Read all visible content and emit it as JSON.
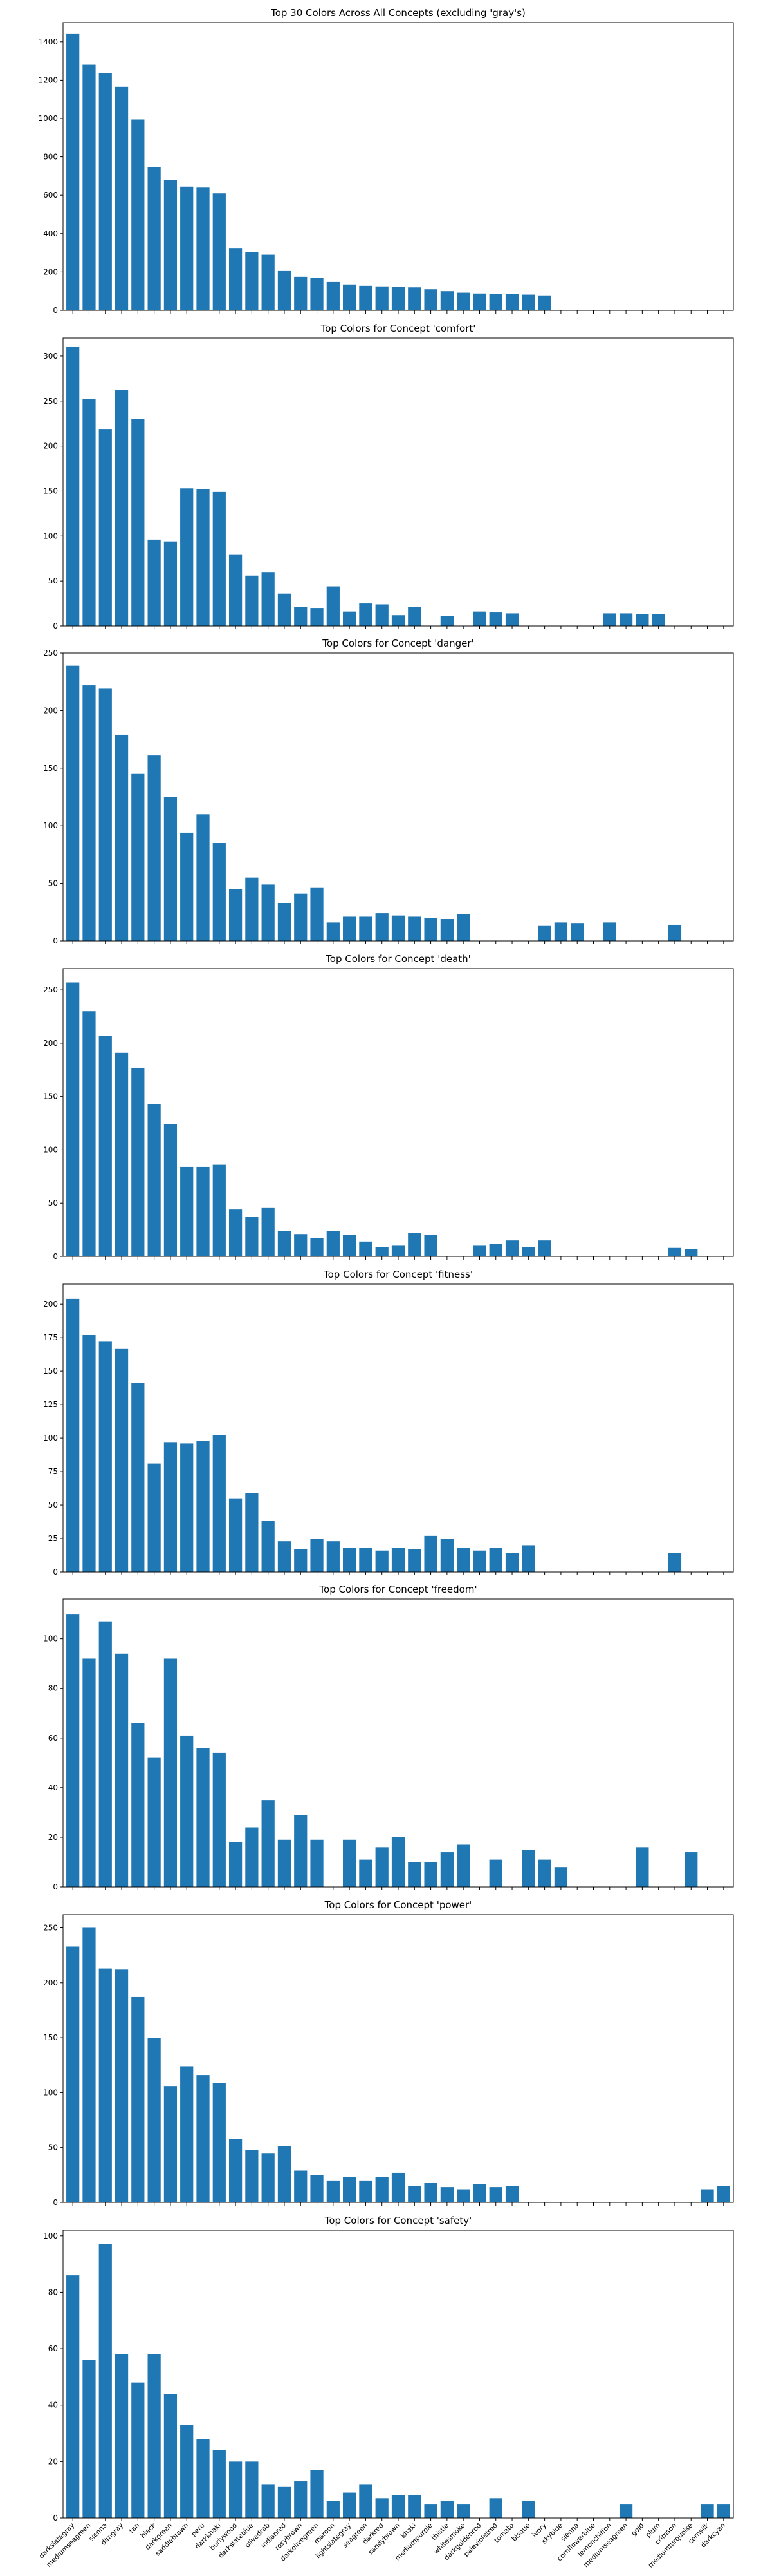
{
  "chart_data": {
    "type": "bar",
    "bar_color": "#1f77b4",
    "axes_edge_color": "#000000",
    "categories": [
      "darkslategray",
      "mediumseagreen",
      "sienna",
      "dimgray",
      "tan",
      "black",
      "darkgreen",
      "saddlebrown",
      "peru",
      "darkkhaki",
      "burlywood",
      "darkslateblue",
      "olivedrab",
      "indianred",
      "rosybrown",
      "darkolivegreen",
      "maroon",
      "lightslategray",
      "seagreen",
      "darkred",
      "sandybrown",
      "khaki",
      "mediumpurple",
      "thistle",
      "whitesmoke",
      "darkgoldenrod",
      "palevioletred",
      "tomato",
      "bisque",
      "ivory",
      "skyblue",
      "sienna",
      "cornflowerblue",
      "lemonchiffon",
      "mediumseagreen",
      "gold",
      "plum",
      "crimson",
      "mediumturquoise",
      "cornsilk",
      "darkcyan"
    ],
    "panels": [
      {
        "title": "Top 30 Colors Across All Concepts (excluding 'gray's)",
        "ylim": [
          0,
          1500
        ],
        "yticks": [
          0,
          200,
          400,
          600,
          800,
          1000,
          1200,
          1400
        ],
        "values": [
          1440,
          1280,
          1235,
          1165,
          995,
          745,
          680,
          645,
          640,
          610,
          325,
          305,
          290,
          205,
          175,
          170,
          148,
          135,
          128,
          125,
          122,
          120,
          110,
          100,
          92,
          88,
          86,
          84,
          82,
          78,
          0,
          0,
          0,
          0,
          0,
          0,
          0,
          0,
          0,
          0,
          0
        ]
      },
      {
        "title": "Top Colors for Concept 'comfort'",
        "ylim": [
          0,
          320
        ],
        "yticks": [
          0,
          50,
          100,
          150,
          200,
          250,
          300
        ],
        "values": [
          310,
          252,
          219,
          262,
          230,
          96,
          94,
          153,
          152,
          149,
          79,
          56,
          60,
          36,
          21,
          20,
          44,
          16,
          25,
          24,
          12,
          21,
          0,
          11,
          0,
          16,
          15,
          14,
          0,
          0,
          0,
          0,
          0,
          14,
          14,
          13,
          13,
          0,
          0,
          0,
          0
        ]
      },
      {
        "title": "Top Colors for Concept 'danger'",
        "ylim": [
          0,
          250
        ],
        "yticks": [
          0,
          50,
          100,
          150,
          200,
          250
        ],
        "values": [
          239,
          222,
          219,
          179,
          145,
          161,
          125,
          94,
          110,
          85,
          45,
          55,
          49,
          33,
          41,
          46,
          16,
          21,
          21,
          24,
          22,
          21,
          20,
          19,
          23,
          0,
          0,
          0,
          0,
          13,
          16,
          15,
          0,
          16,
          0,
          0,
          0,
          14,
          0,
          0,
          0
        ]
      },
      {
        "title": "Top Colors for Concept 'death'",
        "ylim": [
          0,
          270
        ],
        "yticks": [
          0,
          50,
          100,
          150,
          200,
          250
        ],
        "values": [
          257,
          230,
          207,
          191,
          177,
          143,
          124,
          84,
          84,
          86,
          44,
          37,
          46,
          24,
          21,
          17,
          24,
          20,
          14,
          9,
          10,
          22,
          20,
          0,
          0,
          10,
          12,
          15,
          9,
          15,
          0,
          0,
          0,
          0,
          0,
          0,
          0,
          8,
          7,
          0,
          0
        ]
      },
      {
        "title": "Top Colors for Concept 'fitness'",
        "ylim": [
          0,
          215
        ],
        "yticks": [
          0,
          25,
          50,
          75,
          100,
          125,
          150,
          175,
          200
        ],
        "values": [
          204,
          177,
          172,
          167,
          141,
          81,
          97,
          96,
          98,
          102,
          55,
          59,
          38,
          23,
          17,
          25,
          23,
          18,
          18,
          16,
          18,
          17,
          27,
          25,
          18,
          16,
          18,
          14,
          20,
          0,
          0,
          0,
          0,
          0,
          0,
          0,
          0,
          14,
          0,
          0,
          0
        ]
      },
      {
        "title": "Top Colors for Concept 'freedom'",
        "ylim": [
          0,
          116
        ],
        "yticks": [
          0,
          20,
          40,
          60,
          80,
          100
        ],
        "values": [
          110,
          92,
          107,
          94,
          66,
          52,
          92,
          61,
          56,
          54,
          18,
          24,
          35,
          19,
          29,
          19,
          0,
          19,
          11,
          16,
          20,
          10,
          10,
          14,
          17,
          0,
          11,
          0,
          15,
          11,
          8,
          0,
          0,
          0,
          0,
          16,
          0,
          0,
          14,
          0,
          0
        ]
      },
      {
        "title": "Top Colors for Concept 'power'",
        "ylim": [
          0,
          262
        ],
        "yticks": [
          0,
          50,
          100,
          150,
          200,
          250
        ],
        "values": [
          233,
          250,
          213,
          212,
          187,
          150,
          106,
          124,
          116,
          109,
          58,
          48,
          45,
          51,
          29,
          25,
          20,
          23,
          20,
          23,
          27,
          15,
          18,
          14,
          12,
          17,
          14,
          15,
          0,
          0,
          0,
          0,
          0,
          0,
          0,
          0,
          0,
          0,
          0,
          12,
          15
        ]
      },
      {
        "title": "Top Colors for Concept 'safety'",
        "ylim": [
          0,
          102
        ],
        "yticks": [
          0,
          20,
          40,
          60,
          80,
          100
        ],
        "values": [
          86,
          56,
          97,
          58,
          48,
          58,
          44,
          33,
          28,
          24,
          20,
          20,
          12,
          11,
          13,
          17,
          6,
          9,
          12,
          7,
          8,
          8,
          5,
          6,
          5,
          0,
          7,
          0,
          6,
          0,
          0,
          0,
          0,
          0,
          5,
          0,
          0,
          0,
          0,
          5,
          5
        ]
      }
    ]
  }
}
